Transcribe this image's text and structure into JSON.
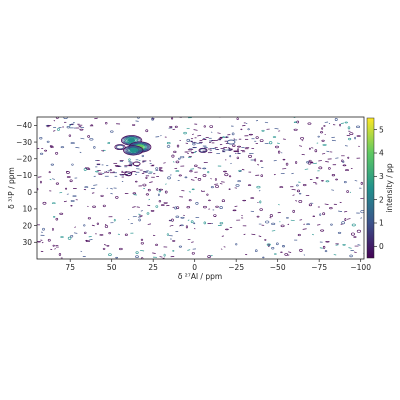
{
  "chart_data": {
    "type": "contour",
    "xlabel": "δ ²⁷Al / ppm",
    "ylabel": "δ ³¹P / ppm",
    "colorbar_label": "intensity / pp",
    "xlim": [
      95,
      -102
    ],
    "ylim": [
      -45,
      40
    ],
    "x_ticks": [
      75,
      50,
      25,
      0,
      -25,
      -50,
      -75,
      -100
    ],
    "x_tick_labels": [
      "75",
      "50",
      "25",
      "0",
      "−25",
      "−50",
      "−75",
      "−100"
    ],
    "y_ticks": [
      -40,
      -30,
      -20,
      -10,
      0,
      10,
      20,
      30
    ],
    "y_tick_labels": [
      "−40",
      "−30",
      "−20",
      "−10",
      "0",
      "10",
      "20",
      "30"
    ],
    "colorbar_range": [
      -0.5,
      5.5
    ],
    "colorbar_ticks": [
      0,
      1,
      2,
      3,
      4,
      5
    ],
    "colorbar_tick_labels": [
      "0",
      "1",
      "2",
      "3",
      "4",
      "5"
    ],
    "colormap": [
      "#440154",
      "#3b528b",
      "#21918c",
      "#5ec962",
      "#fde725"
    ],
    "peaks": [
      {
        "x": 38,
        "y": -31,
        "intensity": 3.2
      },
      {
        "x": 33,
        "y": -27,
        "intensity": 4.0
      },
      {
        "x": 37,
        "y": -25,
        "intensity": 3.0
      },
      {
        "x": 45,
        "y": -27,
        "intensity": 1.2
      },
      {
        "x": -5,
        "y": -25,
        "intensity": 0.8
      },
      {
        "x": -22,
        "y": -30,
        "intensity": 0.7
      },
      {
        "x": 35,
        "y": -17,
        "intensity": 0.6
      },
      {
        "x": 40,
        "y": -11,
        "intensity": 0.6
      }
    ]
  }
}
